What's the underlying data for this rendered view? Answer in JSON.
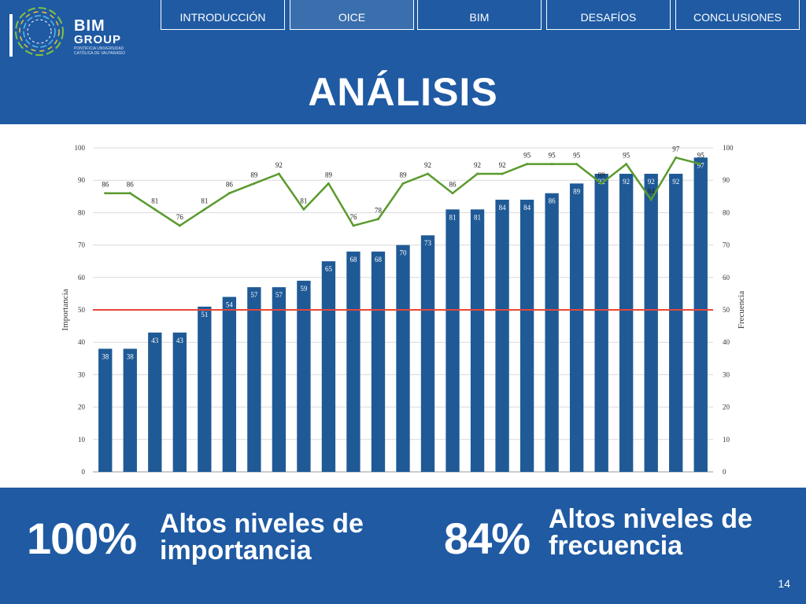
{
  "logo": {
    "line1": "BIM",
    "line2": "GROUP",
    "line3": "PONTIFICIA UNIVERSIDAD CATÓLICA DE VALPARAÍSO"
  },
  "nav": {
    "tabs": [
      "INTRODUCCIÓN",
      "OICE",
      "BIM",
      "DESAFÍOS",
      "CONCLUSIONES"
    ],
    "active": "OICE"
  },
  "title": "ANÁLISIS",
  "stats": [
    {
      "pct": "100%",
      "line1": "Altos niveles de",
      "line2": "importancia"
    },
    {
      "pct": "84%",
      "line1": "Altos niveles de",
      "line2": "frecuencia"
    }
  ],
  "page_number": "14",
  "colors": {
    "background": "#1f5aa3",
    "bars": "#1f5a96",
    "line": "#5a9a2e",
    "threshold": "#e8473a"
  },
  "chart_data": {
    "type": "bar",
    "ylabel": "Importancia",
    "y2label": "Frecuencia",
    "ylim": [
      0,
      100
    ],
    "y2lim": [
      0,
      100
    ],
    "yticks": [
      0,
      10,
      20,
      30,
      40,
      50,
      60,
      70,
      80,
      90,
      100
    ],
    "grid": true,
    "threshold": 50,
    "series": [
      {
        "kind": "bar",
        "axis": "left",
        "values": [
          38,
          38,
          43,
          43,
          51,
          54,
          57,
          57,
          59,
          65,
          68,
          68,
          70,
          73,
          81,
          81,
          84,
          84,
          86,
          89,
          92,
          92,
          92,
          92,
          97
        ]
      },
      {
        "kind": "line",
        "axis": "right",
        "values": [
          86,
          86,
          81,
          76,
          81,
          86,
          89,
          92,
          81,
          89,
          76,
          78,
          89,
          92,
          86,
          92,
          92,
          95,
          95,
          95,
          89,
          95,
          84,
          97,
          95
        ]
      }
    ]
  }
}
